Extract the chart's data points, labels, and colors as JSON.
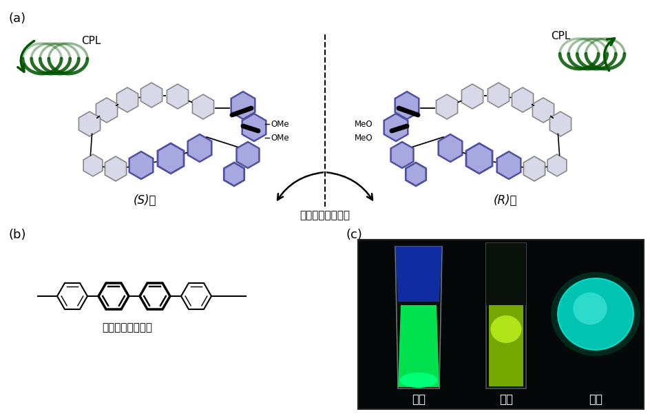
{
  "bg_color": "#ffffff",
  "panel_a_label": "(a)",
  "panel_b_label": "(b)",
  "panel_c_label": "(c)",
  "cpl_label": "CPL",
  "s_label": "(S)体",
  "r_label": "(R)体",
  "mirror_label": "互いに鏡像異性体",
  "ome_label": "OMe",
  "meo_label": "MeO",
  "oligo_label": "オリゴフェニレン",
  "sol_label": "溶液",
  "powder_label": "粉末",
  "film_label": "薄膜",
  "purple_fill": "#a8a8e0",
  "purple_ec": "#5050a0",
  "gray_fill": "#d8d8e8",
  "gray_ec": "#888888",
  "coil_green": "#006600",
  "coil_green_light": "#33aa33",
  "photo_bg": "#050808"
}
